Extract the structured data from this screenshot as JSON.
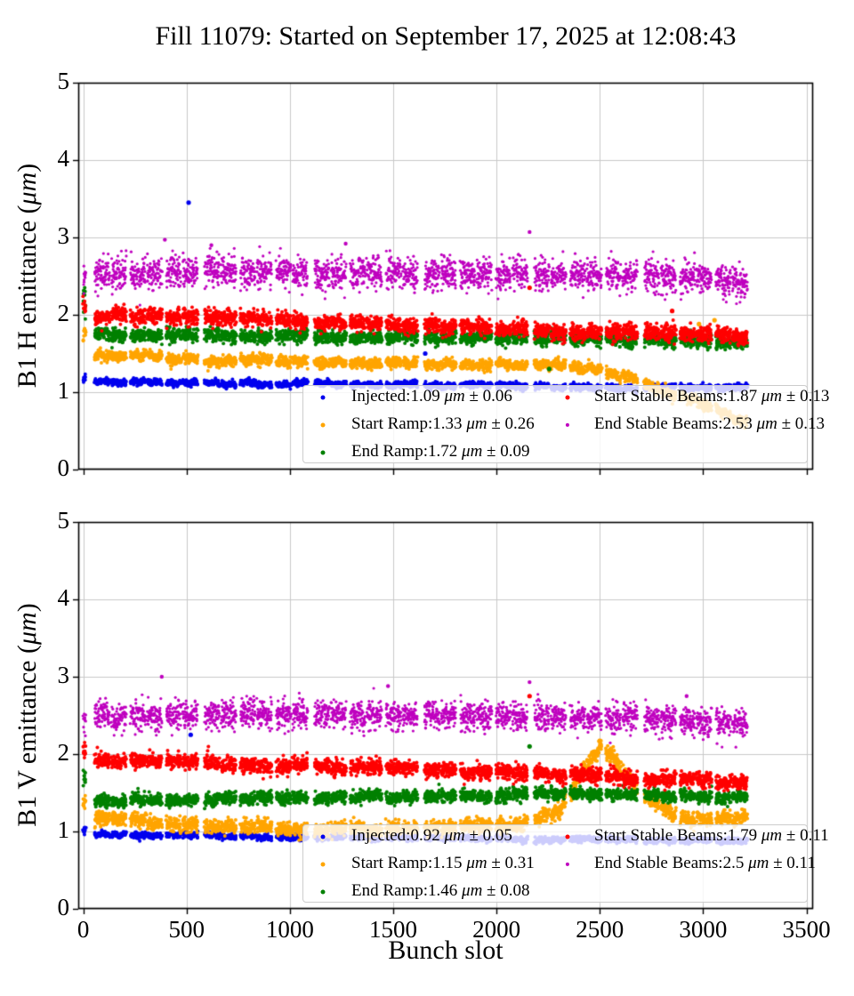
{
  "page": {
    "title": "Fill 11079: Started on September 17, 2025 at 12:08:43"
  },
  "chart_data": [
    {
      "type": "scatter",
      "title": "Fill 11079: Started on September 17, 2025 at 12:08:43",
      "ylabel": "B1 H emittance (μm)",
      "ylabel_parts": {
        "pre": "B1 H emittance (",
        "unit": "μm",
        "post": ")"
      },
      "xlabel": "",
      "xlim": [
        -24,
        3532
      ],
      "ylim": [
        0,
        5
      ],
      "xticks": [
        0,
        500,
        1000,
        1500,
        2000,
        2500,
        3000,
        3500
      ],
      "xtick_labels_visible": false,
      "yticks": [
        0,
        1,
        2,
        3,
        4,
        5
      ],
      "grid": true,
      "bunch_pattern": {
        "initial_cluster_start": 0,
        "initial_cluster_len": 12,
        "supergroups": 6,
        "start_slot": 56,
        "blocks_per_supergroup": 3,
        "trains_per_block": 2,
        "train_len": 72,
        "intra_block_gap": 8,
        "block_gap": 21,
        "supergroup_gap": 34,
        "last_slot": 3213
      },
      "series": [
        {
          "name": "Injected",
          "color": "#0000ee",
          "mean": 1.09,
          "std": 0.06,
          "unit": "μm",
          "sigma": 0.02,
          "train_jitter": 0.018,
          "wave": 0.012,
          "first_cluster_boost": 0.03,
          "dot_r": 2.0,
          "profile": [
            [
              0,
              1.14
            ],
            [
              500,
              1.12
            ],
            [
              1000,
              1.11
            ],
            [
              1600,
              1.085
            ],
            [
              2200,
              1.07
            ],
            [
              2800,
              1.06
            ],
            [
              3213,
              1.05
            ]
          ]
        },
        {
          "name": "Start Ramp",
          "color": "#ffa500",
          "mean": 1.33,
          "std": 0.26,
          "unit": "μm",
          "sigma": 0.032,
          "train_jitter": 0.03,
          "wave": 0.015,
          "first_cluster_boost": 0.22,
          "dot_r": 2.0,
          "profile": [
            [
              0,
              1.5
            ],
            [
              250,
              1.45
            ],
            [
              700,
              1.41
            ],
            [
              1200,
              1.38
            ],
            [
              1800,
              1.37
            ],
            [
              2300,
              1.34
            ],
            [
              2500,
              1.28
            ],
            [
              2650,
              1.19
            ],
            [
              2800,
              1.03
            ],
            [
              2950,
              0.89
            ],
            [
              3100,
              0.73
            ],
            [
              3213,
              0.62
            ]
          ]
        },
        {
          "name": "End Ramp",
          "color": "#008000",
          "mean": 1.72,
          "std": 0.09,
          "unit": "μm",
          "sigma": 0.042,
          "train_jitter": 0.02,
          "wave": 0.01,
          "first_cluster_boost": 0.45,
          "dot_r": 2.0,
          "profile": [
            [
              0,
              1.75
            ],
            [
              800,
              1.73
            ],
            [
              1600,
              1.71
            ],
            [
              2400,
              1.7
            ],
            [
              3213,
              1.64
            ]
          ]
        },
        {
          "name": "Start Stable Beams",
          "color": "#ff0000",
          "mean": 1.87,
          "std": 0.13,
          "unit": "μm",
          "sigma": 0.05,
          "train_jitter": 0.025,
          "wave": 0.01,
          "first_cluster_boost": 0.12,
          "dot_r": 2.0,
          "profile": [
            [
              0,
              2.0
            ],
            [
              500,
              1.97
            ],
            [
              1000,
              1.92
            ],
            [
              1600,
              1.86
            ],
            [
              2200,
              1.8
            ],
            [
              2700,
              1.76
            ],
            [
              3213,
              1.72
            ]
          ]
        },
        {
          "name": "End Stable Beams",
          "color": "#bf00bf",
          "mean": 2.53,
          "std": 0.13,
          "unit": "μm",
          "sigma": 0.1,
          "train_jitter": 0.02,
          "wave": 0,
          "first_cluster_boost": -0.02,
          "dot_r": 1.6,
          "profile": [
            [
              0,
              2.5
            ],
            [
              600,
              2.56
            ],
            [
              1200,
              2.54
            ],
            [
              2000,
              2.53
            ],
            [
              2600,
              2.52
            ],
            [
              3213,
              2.43
            ]
          ]
        }
      ],
      "outliers": [
        {
          "series": 0,
          "x": 510,
          "y": 3.45
        },
        {
          "series": 0,
          "x": 1655,
          "y": 1.5
        },
        {
          "series": 4,
          "x": 2160,
          "y": 3.07
        },
        {
          "series": 4,
          "x": 395,
          "y": 2.97
        },
        {
          "series": 4,
          "x": 1270,
          "y": 2.92
        },
        {
          "series": 4,
          "x": 620,
          "y": 2.9
        },
        {
          "series": 1,
          "x": 3055,
          "y": 1.93
        },
        {
          "series": 1,
          "x": 2980,
          "y": 1.88
        },
        {
          "series": 2,
          "x": 2255,
          "y": 1.3
        },
        {
          "series": 3,
          "x": 2850,
          "y": 2.05
        },
        {
          "series": 3,
          "x": 2160,
          "y": 2.35
        }
      ],
      "legend": {
        "pm": "±",
        "entries": [
          {
            "label": "Injected:",
            "value": "1.09",
            "unit": "μm",
            "err": "0.06"
          },
          {
            "label": "Start Ramp:",
            "value": "1.33",
            "unit": "μm",
            "err": "0.26"
          },
          {
            "label": "End Ramp:",
            "value": "1.72",
            "unit": "μm",
            "err": "0.09"
          },
          {
            "label": "Start Stable Beams:",
            "value": "1.87",
            "unit": "μm",
            "err": "0.13"
          },
          {
            "label": "End Stable Beams:",
            "value": "2.53",
            "unit": "μm",
            "err": "0.13"
          }
        ]
      }
    },
    {
      "type": "scatter",
      "ylabel": "B1 V emittance (μm)",
      "ylabel_parts": {
        "pre": "B1 V emittance (",
        "unit": "μm",
        "post": ")"
      },
      "xlabel": "Bunch slot",
      "xlim": [
        -24,
        3532
      ],
      "ylim": [
        0,
        5
      ],
      "xticks": [
        0,
        500,
        1000,
        1500,
        2000,
        2500,
        3000,
        3500
      ],
      "xtick_labels_visible": true,
      "yticks": [
        0,
        1,
        2,
        3,
        4,
        5
      ],
      "grid": true,
      "bunch_pattern": {
        "initial_cluster_start": 0,
        "initial_cluster_len": 12,
        "supergroups": 6,
        "start_slot": 56,
        "blocks_per_supergroup": 3,
        "trains_per_block": 2,
        "train_len": 72,
        "intra_block_gap": 8,
        "block_gap": 21,
        "supergroup_gap": 34,
        "last_slot": 3213
      },
      "series": [
        {
          "name": "Injected",
          "color": "#0000ee",
          "mean": 0.92,
          "std": 0.05,
          "unit": "μm",
          "sigma": 0.018,
          "train_jitter": 0.015,
          "wave": 0.01,
          "first_cluster_boost": 0.05,
          "dot_r": 2.0,
          "profile": [
            [
              0,
              0.96
            ],
            [
              600,
              0.945
            ],
            [
              1200,
              0.925
            ],
            [
              2000,
              0.9
            ],
            [
              2600,
              0.89
            ],
            [
              3213,
              0.88
            ]
          ]
        },
        {
          "name": "Start Ramp",
          "color": "#ffa500",
          "mean": 1.15,
          "std": 0.31,
          "unit": "μm",
          "sigma": 0.045,
          "train_jitter": 0.03,
          "wave": 0.015,
          "first_cluster_boost": 0.16,
          "dot_r": 2.0,
          "profile": [
            [
              0,
              1.18
            ],
            [
              400,
              1.1
            ],
            [
              900,
              1.05
            ],
            [
              1600,
              1.03
            ],
            [
              2100,
              1.07
            ],
            [
              2300,
              1.24
            ],
            [
              2430,
              1.8
            ],
            [
              2500,
              2.12
            ],
            [
              2560,
              1.98
            ],
            [
              2700,
              1.47
            ],
            [
              2850,
              1.22
            ],
            [
              3000,
              1.13
            ],
            [
              3213,
              1.21
            ]
          ]
        },
        {
          "name": "End Ramp",
          "color": "#008000",
          "mean": 1.46,
          "std": 0.08,
          "unit": "μm",
          "sigma": 0.038,
          "train_jitter": 0.02,
          "wave": 0.01,
          "first_cluster_boost": 0.31,
          "dot_r": 2.0,
          "profile": [
            [
              0,
              1.39
            ],
            [
              600,
              1.42
            ],
            [
              1200,
              1.44
            ],
            [
              1900,
              1.46
            ],
            [
              2400,
              1.5
            ],
            [
              2800,
              1.47
            ],
            [
              3213,
              1.43
            ]
          ]
        },
        {
          "name": "Start Stable Beams",
          "color": "#ff0000",
          "mean": 1.79,
          "std": 0.11,
          "unit": "μm",
          "sigma": 0.048,
          "train_jitter": 0.022,
          "wave": 0.01,
          "first_cluster_boost": 0.1,
          "dot_r": 2.0,
          "profile": [
            [
              0,
              1.92
            ],
            [
              600,
              1.89
            ],
            [
              1200,
              1.84
            ],
            [
              1800,
              1.79
            ],
            [
              2300,
              1.74
            ],
            [
              2800,
              1.68
            ],
            [
              3213,
              1.62
            ]
          ]
        },
        {
          "name": "End Stable Beams",
          "color": "#bf00bf",
          "mean": 2.5,
          "std": 0.11,
          "unit": "μm",
          "sigma": 0.09,
          "train_jitter": 0.02,
          "wave": 0,
          "first_cluster_boost": -0.02,
          "dot_r": 1.6,
          "profile": [
            [
              0,
              2.47
            ],
            [
              800,
              2.52
            ],
            [
              1600,
              2.5
            ],
            [
              2400,
              2.5
            ],
            [
              2900,
              2.44
            ],
            [
              3213,
              2.37
            ]
          ]
        }
      ],
      "outliers": [
        {
          "series": 0,
          "x": 520,
          "y": 2.25
        },
        {
          "series": 4,
          "x": 380,
          "y": 3.0
        },
        {
          "series": 4,
          "x": 2160,
          "y": 2.93
        },
        {
          "series": 3,
          "x": 2160,
          "y": 2.75
        },
        {
          "series": 4,
          "x": 1475,
          "y": 2.88
        },
        {
          "series": 4,
          "x": 2920,
          "y": 2.75
        },
        {
          "series": 2,
          "x": 2160,
          "y": 2.1
        }
      ],
      "legend": {
        "pm": "±",
        "entries": [
          {
            "label": "Injected:",
            "value": "0.92",
            "unit": "μm",
            "err": "0.05"
          },
          {
            "label": "Start Ramp:",
            "value": "1.15",
            "unit": "μm",
            "err": "0.31"
          },
          {
            "label": "End Ramp:",
            "value": "1.46",
            "unit": "μm",
            "err": "0.08"
          },
          {
            "label": "Start Stable Beams:",
            "value": "1.79",
            "unit": "μm",
            "err": "0.11"
          },
          {
            "label": "End Stable Beams:",
            "value": "2.5",
            "unit": "μm",
            "err": "0.11"
          }
        ]
      }
    }
  ],
  "colors": {
    "injected": "#0000ee",
    "start_ramp": "#ffa500",
    "end_ramp": "#008000",
    "start_stable_beams": "#ff0000",
    "end_stable_beams": "#bf00bf",
    "grid": "#c9c9c9",
    "spine": "#000000",
    "legend_border": "#cccccc"
  }
}
